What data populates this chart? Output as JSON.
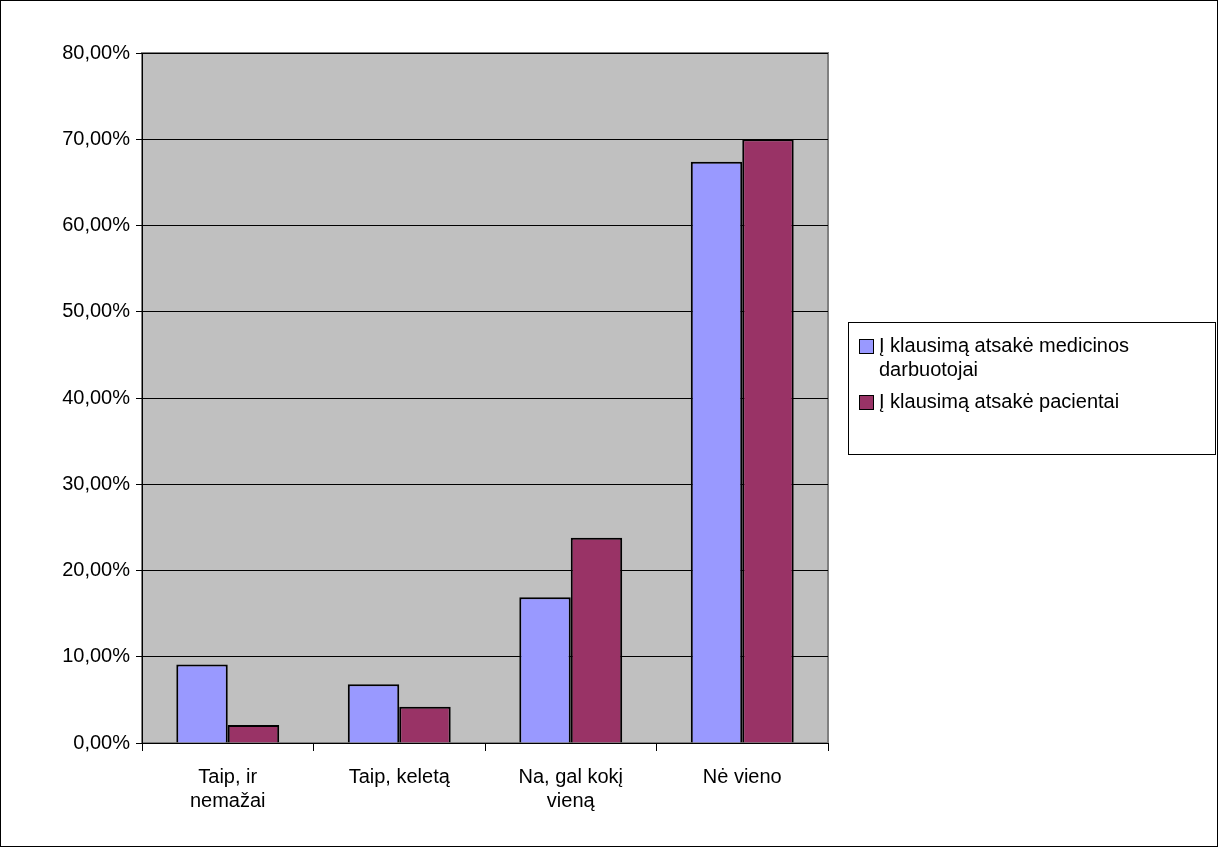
{
  "chart_data": {
    "type": "bar",
    "categories": [
      "Taip, ir nemažai",
      "Taip, keletą",
      "Na, gal kokį vieną",
      "Nė vieno"
    ],
    "series": [
      {
        "name": "Į klausimą atsakė medicinos darbuotojai",
        "color": "#9999ff",
        "values": [
          9.1,
          6.8,
          16.9,
          67.4
        ]
      },
      {
        "name": "Į klausimą atsakė pacientai",
        "color": "#993366",
        "values": [
          2.1,
          4.2,
          23.8,
          70.0
        ]
      }
    ],
    "ylim": [
      0,
      80
    ],
    "yticks": [
      {
        "value": 0,
        "label": "0,00%"
      },
      {
        "value": 10,
        "label": "10,00%"
      },
      {
        "value": 20,
        "label": "20,00%"
      },
      {
        "value": 30,
        "label": "30,00%"
      },
      {
        "value": 40,
        "label": "40,00%"
      },
      {
        "value": 50,
        "label": "50,00%"
      },
      {
        "value": 60,
        "label": "60,00%"
      },
      {
        "value": 70,
        "label": "70,00%"
      },
      {
        "value": 80,
        "label": "80,00%"
      }
    ],
    "grid": "y",
    "legend": "right"
  }
}
